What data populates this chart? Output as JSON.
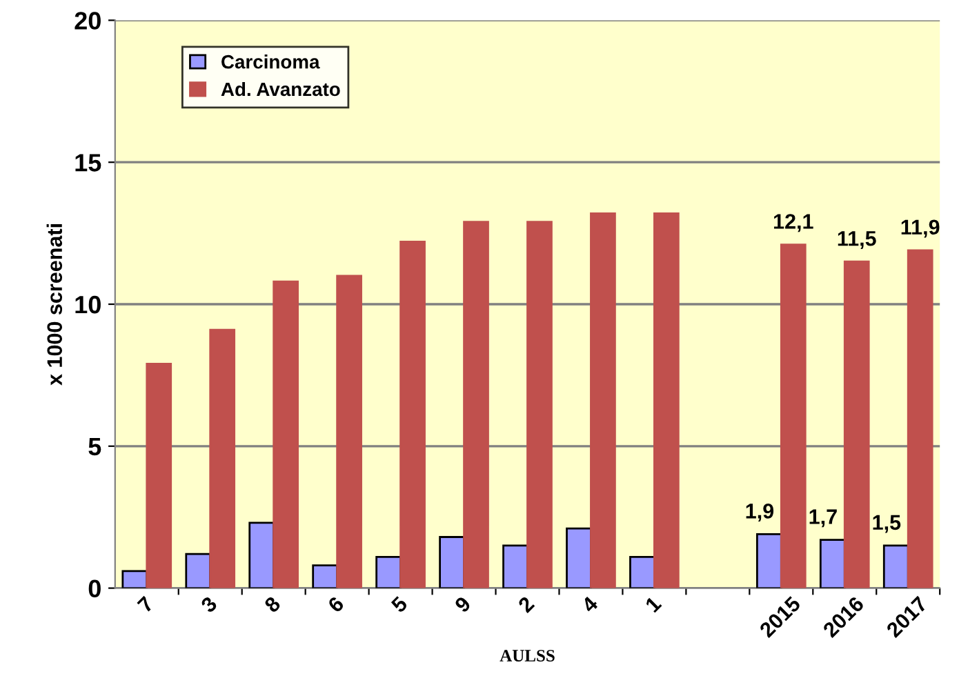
{
  "chart_data": {
    "type": "bar",
    "xlabel": "AULSS",
    "ylabel": "x 1000 screenati",
    "categories": [
      "7",
      "3",
      "8",
      "6",
      "5",
      "9",
      "2",
      "4",
      "1",
      null,
      "2015",
      "2016",
      "2017"
    ],
    "series": [
      {
        "name": "Carcinoma",
        "color": "#9999ff",
        "values": [
          0.6,
          1.2,
          2.3,
          0.8,
          1.1,
          1.8,
          1.5,
          2.1,
          1.1,
          null,
          1.9,
          1.7,
          1.5
        ],
        "value_labels": [
          null,
          null,
          null,
          null,
          null,
          null,
          null,
          null,
          null,
          null,
          "1,9",
          "1,7",
          "1,5"
        ]
      },
      {
        "name": "Ad. Avanzato",
        "color": "#c0504d",
        "values": [
          7.9,
          9.1,
          10.8,
          11.0,
          12.2,
          12.9,
          12.9,
          13.2,
          13.2,
          null,
          12.1,
          11.5,
          11.9
        ],
        "value_labels": [
          null,
          null,
          null,
          null,
          null,
          null,
          null,
          null,
          null,
          null,
          "12,1",
          "11,5",
          "11,9"
        ]
      }
    ],
    "ylim": [
      0,
      20
    ],
    "yticks": [
      0,
      5,
      10,
      15,
      20
    ],
    "grid": "y",
    "legend": "top left"
  }
}
